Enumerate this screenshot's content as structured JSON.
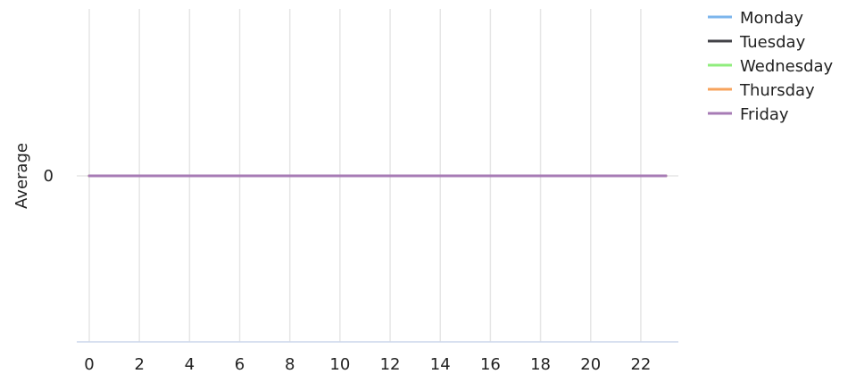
{
  "chart_data": {
    "type": "line",
    "title": "",
    "xlabel": "",
    "ylabel": "Average",
    "x": [
      0,
      1,
      2,
      3,
      4,
      5,
      6,
      7,
      8,
      9,
      10,
      11,
      12,
      13,
      14,
      15,
      16,
      17,
      18,
      19,
      20,
      21,
      22,
      23
    ],
    "x_ticks": [
      "0",
      "2",
      "4",
      "6",
      "8",
      "10",
      "12",
      "14",
      "16",
      "18",
      "20",
      "22"
    ],
    "y_ticks": [
      "0"
    ],
    "xlim": [
      0,
      23
    ],
    "ylim": [
      -1,
      1
    ],
    "grid": "vertical",
    "legend_position": "top-right",
    "series": [
      {
        "name": "Monday",
        "color": "#7cb5ec",
        "values": [
          0,
          0,
          0,
          0,
          0,
          0,
          0,
          0,
          0,
          0,
          0,
          0,
          0,
          0,
          0,
          0,
          0,
          0,
          0,
          0,
          0,
          0,
          0,
          0
        ]
      },
      {
        "name": "Tuesday",
        "color": "#434348",
        "values": [
          0,
          0,
          0,
          0,
          0,
          0,
          0,
          0,
          0,
          0,
          0,
          0,
          0,
          0,
          0,
          0,
          0,
          0,
          0,
          0,
          0,
          0,
          0,
          0
        ]
      },
      {
        "name": "Wednesday",
        "color": "#90ed7d",
        "values": [
          0,
          0,
          0,
          0,
          0,
          0,
          0,
          0,
          0,
          0,
          0,
          0,
          0,
          0,
          0,
          0,
          0,
          0,
          0,
          0,
          0,
          0,
          0,
          0
        ]
      },
      {
        "name": "Thursday",
        "color": "#f7a35c",
        "values": [
          0,
          0,
          0,
          0,
          0,
          0,
          0,
          0,
          0,
          0,
          0,
          0,
          0,
          0,
          0,
          0,
          0,
          0,
          0,
          0,
          0,
          0,
          0,
          0
        ]
      },
      {
        "name": "Friday",
        "color": "#a77bb5",
        "values": [
          0,
          0,
          0,
          0,
          0,
          0,
          0,
          0,
          0,
          0,
          0,
          0,
          0,
          0,
          0,
          0,
          0,
          0,
          0,
          0,
          0,
          0,
          0,
          0
        ]
      }
    ]
  }
}
